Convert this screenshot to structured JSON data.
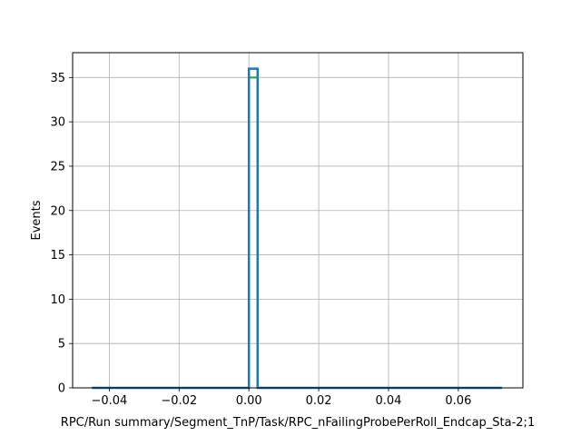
{
  "chart_data": {
    "type": "bar",
    "title": "",
    "xlabel": "RPC/Run summary/Segment_TnP/Task/RPC_nFailingProbePerRoll_Endcap_Sta-2;1",
    "ylabel": "Events",
    "xlim": [
      -0.0505,
      0.0785
    ],
    "ylim": [
      0,
      37.8
    ],
    "grid": true,
    "legend": "none",
    "colors": {
      "primary": "#1f77b4",
      "secondary": "#2ca02c",
      "grid": "#b0b0b0"
    },
    "x_ticks": [
      -0.04,
      -0.02,
      0.0,
      0.02,
      0.04,
      0.06
    ],
    "x_tick_labels": [
      "−0.04",
      "−0.02",
      "0.00",
      "0.02",
      "0.04",
      "0.06"
    ],
    "y_ticks": [
      0,
      5,
      10,
      15,
      20,
      25,
      30,
      35
    ],
    "y_tick_labels": [
      "0",
      "5",
      "10",
      "15",
      "20",
      "25",
      "30",
      "35"
    ],
    "histogram": {
      "x_start": -0.045,
      "x_end": 0.0725,
      "bins": [
        {
          "x0": -0.045,
          "x1": 0.0,
          "value": 0
        },
        {
          "x0": 0.0,
          "x1": 0.0025,
          "value": 36
        },
        {
          "x0": 0.0025,
          "x1": 0.0725,
          "value": 0
        }
      ]
    },
    "secondary_series": {
      "x0": 0.0,
      "x1": 0.0025,
      "value": 35
    }
  }
}
